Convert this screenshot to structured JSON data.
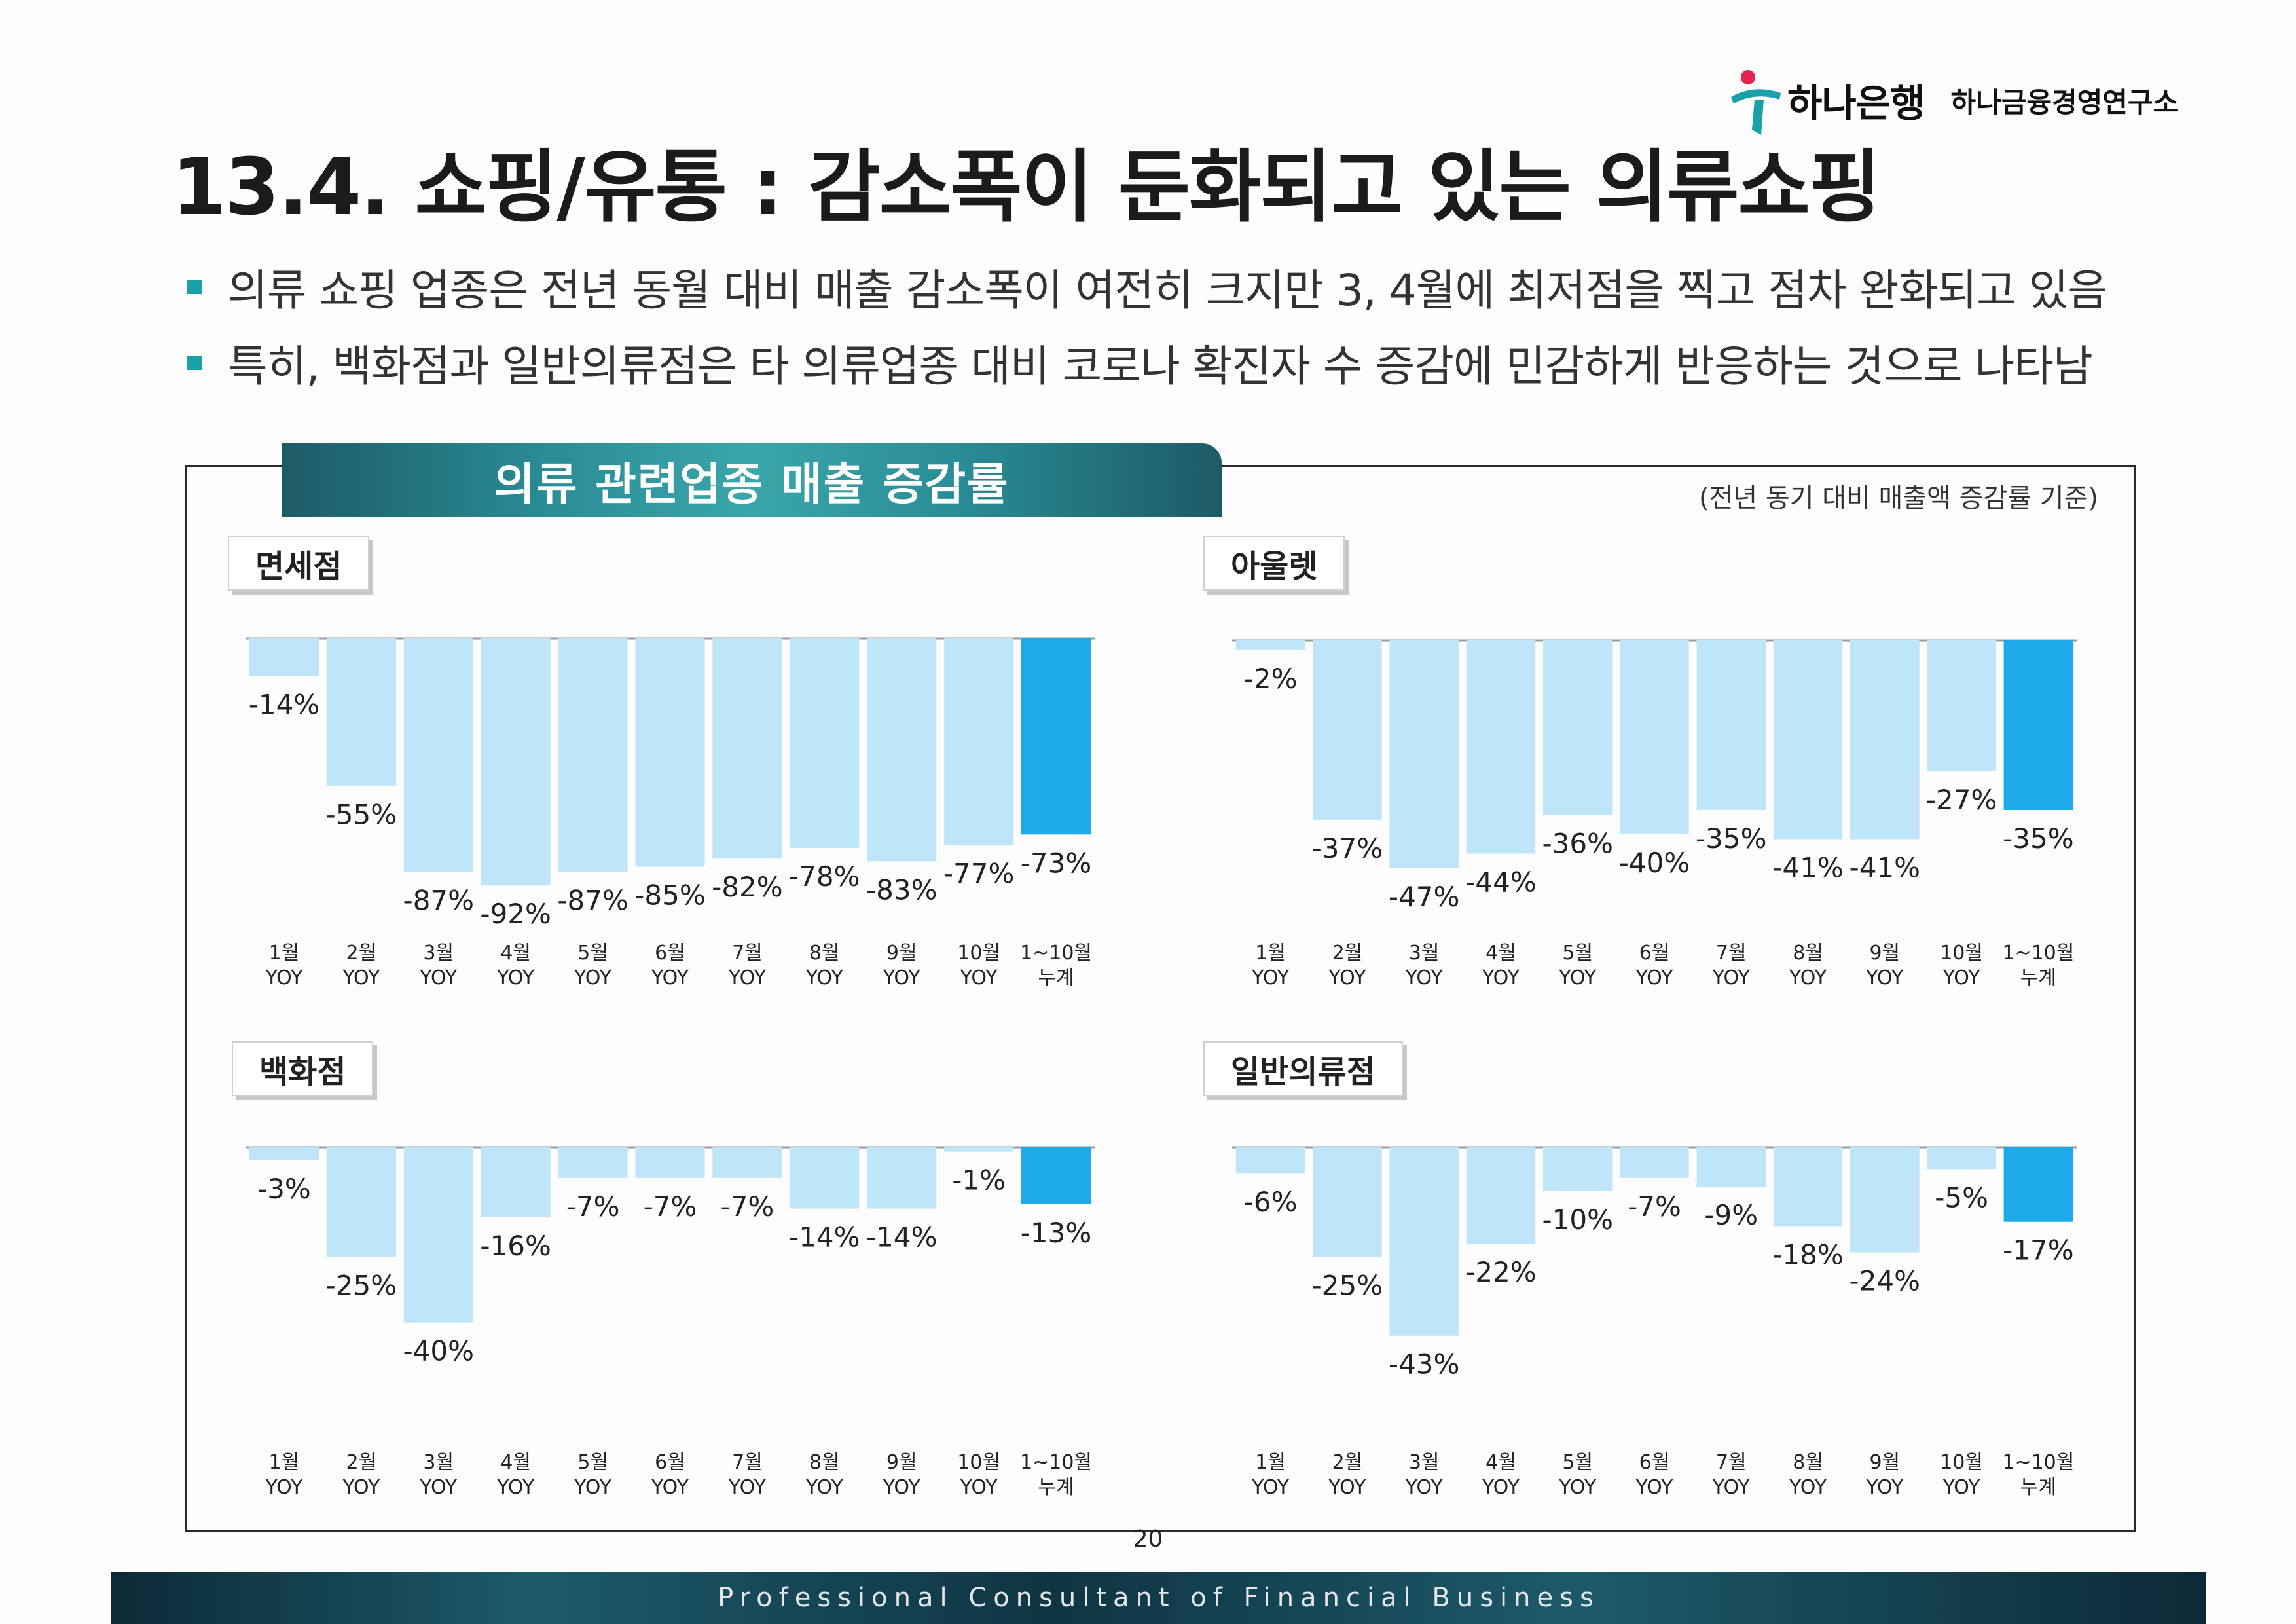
{
  "brand": {
    "logo_icon": "hana-logo-icon",
    "bank_name": "하나은행",
    "institute_name": "하나금융경영연구소"
  },
  "title": "13.4. 쇼핑/유통 : 감소폭이 둔화되고 있는 의류쇼핑",
  "bullets": [
    "의류 쇼핑 업종은 전년 동월 대비 매출 감소폭이 여전히 크지만 3, 4월에 최저점을 찍고 점차 완화되고 있음",
    "특히, 백화점과 일반의류점은 타 의류업종 대비 코로나 확진자 수 증감에 민감하게 반응하는 것으로 나타남"
  ],
  "figure": {
    "banner": "의류 관련업종 매출 증감률",
    "basis_note": "(전년 동기 대비 매출액 증감률 기준)"
  },
  "colors": {
    "bar": "#bfe6f8",
    "highlight_bar": "#1eaaea",
    "accent": "#19a0a8"
  },
  "chart_data": [
    {
      "type": "bar",
      "title": "면세점",
      "categories": [
        "1월|YOY",
        "2월|YOY",
        "3월|YOY",
        "4월|YOY",
        "5월|YOY",
        "6월|YOY",
        "7월|YOY",
        "8월|YOY",
        "9월|YOY",
        "10월|YOY",
        "1~10월|누계"
      ],
      "values": [
        -14,
        -55,
        -87,
        -92,
        -87,
        -85,
        -82,
        -78,
        -83,
        -77,
        -73
      ],
      "labels": [
        "-14%",
        "-55%",
        "-87%",
        "-92%",
        "-87%",
        "-85%",
        "-82%",
        "-78%",
        "-83%",
        "-77%",
        "-73%"
      ],
      "ylim": [
        -100,
        0
      ],
      "highlight_index": 10
    },
    {
      "type": "bar",
      "title": "아울렛",
      "categories": [
        "1월|YOY",
        "2월|YOY",
        "3월|YOY",
        "4월|YOY",
        "5월|YOY",
        "6월|YOY",
        "7월|YOY",
        "8월|YOY",
        "9월|YOY",
        "10월|YOY",
        "1~10월|누계"
      ],
      "values": [
        -2,
        -37,
        -47,
        -44,
        -36,
        -40,
        -35,
        -41,
        -41,
        -27,
        -35
      ],
      "labels": [
        "-2%",
        "-37%",
        "-47%",
        "-44%",
        "-36%",
        "-40%",
        "-35%",
        "-41%",
        "-41%",
        "-27%",
        "-35%"
      ],
      "ylim": [
        -55,
        0
      ],
      "highlight_index": 10
    },
    {
      "type": "bar",
      "title": "백화점",
      "categories": [
        "1월|YOY",
        "2월|YOY",
        "3월|YOY",
        "4월|YOY",
        "5월|YOY",
        "6월|YOY",
        "7월|YOY",
        "8월|YOY",
        "9월|YOY",
        "10월|YOY",
        "1~10월|누계"
      ],
      "values": [
        -3,
        -25,
        -40,
        -16,
        -7,
        -7,
        -7,
        -14,
        -14,
        -1,
        -13
      ],
      "labels": [
        "-3%",
        "-25%",
        "-40%",
        "-16%",
        "-7%",
        "-7%",
        "-7%",
        "-14%",
        "-14%",
        "-1%",
        "-13%"
      ],
      "ylim": [
        -55,
        0
      ],
      "highlight_index": 10
    },
    {
      "type": "bar",
      "title": "일반의류점",
      "categories": [
        "1월|YOY",
        "2월|YOY",
        "3월|YOY",
        "4월|YOY",
        "5월|YOY",
        "6월|YOY",
        "7월|YOY",
        "8월|YOY",
        "9월|YOY",
        "10월|YOY",
        "1~10월|누계"
      ],
      "values": [
        -6,
        -25,
        -43,
        -22,
        -10,
        -7,
        -9,
        -18,
        -24,
        -5,
        -17
      ],
      "labels": [
        "-6%",
        "-25%",
        "-43%",
        "-22%",
        "-10%",
        "-7%",
        "-9%",
        "-18%",
        "-24%",
        "-5%",
        "-17%"
      ],
      "ylim": [
        -55,
        0
      ],
      "highlight_index": 10
    }
  ],
  "page_number": "20",
  "footer_tagline": "Professional Consultant of Financial Business"
}
